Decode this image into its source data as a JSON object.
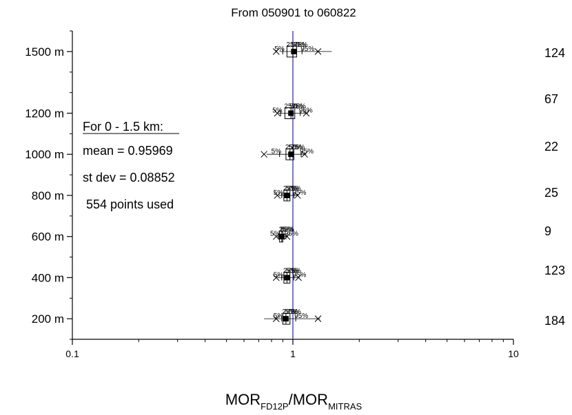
{
  "chart_data": {
    "type": "box",
    "title": "From 050901 to 060822",
    "x_scale": "log",
    "xlim": [
      0.1,
      10
    ],
    "ylim": [
      100,
      1600
    ],
    "x_ticks": [
      0.1,
      1,
      10
    ],
    "x_tick_labels": [
      "0.1",
      "1",
      "10"
    ],
    "y_ticks": [
      200,
      400,
      600,
      800,
      1000,
      1200,
      1500
    ],
    "y_tick_labels": [
      "200 m",
      "400 m",
      "600 m",
      "800 m",
      "1000 m",
      "1200 m",
      "1500 m"
    ],
    "xlabel": {
      "main1": "MOR",
      "sub1": "FD12P",
      "slash": "/",
      "main2": "MOR",
      "sub2": "MITRAS"
    },
    "reference_line_x": 1,
    "grid": false,
    "stats": {
      "header": "For 0 - 1.5 km:",
      "mean": "mean = 0.95969",
      "stdev": "st dev = 0.08852",
      "points": "554 points used"
    },
    "percentile_labels": [
      "5%",
      "25%",
      "50%",
      "75%",
      "95%"
    ],
    "boxes": [
      {
        "y": 1500,
        "count": "124",
        "p5": 0.9,
        "p25": 0.94,
        "median": 1.0,
        "p75": 1.04,
        "p95": 1.1,
        "mean": 1.01,
        "min": 0.84,
        "max": 1.3,
        "range_low": 0.87,
        "range_high": 1.5
      },
      {
        "y": 1200,
        "count": "67",
        "p5": 0.88,
        "p25": 0.92,
        "median": 0.98,
        "p75": 1.02,
        "p95": 1.08,
        "mean": 0.98,
        "min": 0.85,
        "max": 1.15,
        "range_low": 0.86,
        "range_high": 1.17
      },
      {
        "y": 1000,
        "count": "22",
        "p5": 0.87,
        "p25": 0.93,
        "median": 0.97,
        "p75": 1.01,
        "p95": 1.09,
        "mean": 0.98,
        "min": 0.74,
        "max": 1.13,
        "range_low": 0.76,
        "range_high": 1.15
      },
      {
        "y": 800,
        "count": "25",
        "p5": 0.89,
        "p25": 0.91,
        "median": 0.94,
        "p75": 0.97,
        "p95": 1.01,
        "mean": 0.94,
        "min": 0.85,
        "max": 1.05,
        "range_low": 0.86,
        "range_high": 1.06
      },
      {
        "y": 600,
        "count": "9",
        "p5": 0.86,
        "p25": 0.87,
        "median": 0.89,
        "p75": 0.9,
        "p95": 0.93,
        "mean": 0.89,
        "min": 0.84,
        "max": 0.94,
        "range_low": 0.85,
        "range_high": 0.95
      },
      {
        "y": 400,
        "count": "123",
        "p5": 0.89,
        "p25": 0.91,
        "median": 0.94,
        "p75": 0.97,
        "p95": 1.01,
        "mean": 0.94,
        "min": 0.84,
        "max": 1.06,
        "range_low": 0.85,
        "range_high": 1.07
      },
      {
        "y": 200,
        "count": "184",
        "p5": 0.89,
        "p25": 0.9,
        "median": 0.93,
        "p75": 0.97,
        "p95": 1.03,
        "mean": 0.93,
        "min": 0.84,
        "max": 1.3,
        "range_low": 0.74,
        "range_high": 1.33
      }
    ]
  }
}
